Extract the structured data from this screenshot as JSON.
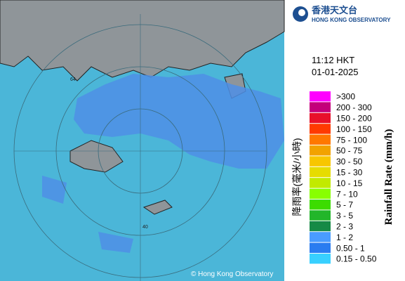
{
  "header": {
    "logo_chinese": "香港天文台",
    "logo_english": "HONG KONG OBSERVATORY"
  },
  "time": "11:12 HKT",
  "date": "01-01-2025",
  "map": {
    "copyright": "© Hong Kong Observatory",
    "ring_labels": [
      "64",
      "40"
    ]
  },
  "legend": {
    "title_chinese": "降雨率(毫米/小時)",
    "title_english": "Rainfall Rate (mm/h)",
    "items": [
      {
        "label": ">300",
        "color": "#ff00ff"
      },
      {
        "label": "200 - 300",
        "color": "#c4007a"
      },
      {
        "label": "150 - 200",
        "color": "#e8102a"
      },
      {
        "label": "100 - 150",
        "color": "#ff3a00"
      },
      {
        "label": "75 - 100",
        "color": "#ff7800"
      },
      {
        "label": "50 - 75",
        "color": "#f2a200"
      },
      {
        "label": "30 - 50",
        "color": "#f8c600"
      },
      {
        "label": "15 - 30",
        "color": "#e6dc00"
      },
      {
        "label": "10 - 15",
        "color": "#c2ea00"
      },
      {
        "label": "7 - 10",
        "color": "#88ff00"
      },
      {
        "label": "5 - 7",
        "color": "#3cdc00"
      },
      {
        "label": "3 - 5",
        "color": "#22b62a"
      },
      {
        "label": "2 - 3",
        "color": "#168a46"
      },
      {
        "label": "1 - 2",
        "color": "#4a9cff"
      },
      {
        "label": "0.50 - 1",
        "color": "#2a7cf0"
      },
      {
        "label": "0.15 - 0.50",
        "color": "#38d0ff"
      }
    ]
  }
}
